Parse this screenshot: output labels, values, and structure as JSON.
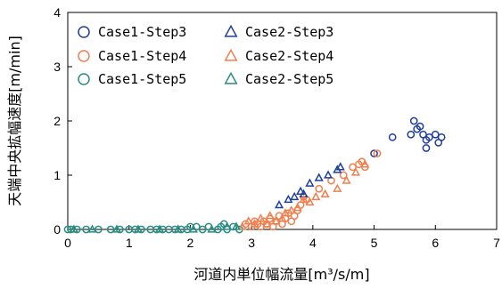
{
  "chart_data": {
    "type": "scatter",
    "xlabel": "河道内単位幅流量[m³/s/m]",
    "ylabel": "天端中央拡幅速度[m/min]",
    "xlim": [
      0,
      7
    ],
    "ylim": [
      0,
      4
    ],
    "xticks": [
      "0",
      "1",
      "2",
      "3",
      "4",
      "5",
      "6",
      "7"
    ],
    "yticks": [
      "0",
      "1",
      "2",
      "3",
      "4"
    ],
    "grid": false,
    "legend_position": "top-left",
    "series": [
      {
        "name": "Case1-Step3",
        "marker": "circle",
        "color": "#1f3f99",
        "points": [
          [
            5.0,
            1.4
          ],
          [
            5.3,
            1.7
          ],
          [
            5.6,
            1.75
          ],
          [
            5.65,
            2.0
          ],
          [
            5.7,
            1.85
          ],
          [
            5.75,
            1.9
          ],
          [
            5.8,
            1.75
          ],
          [
            5.85,
            1.65
          ],
          [
            5.85,
            1.5
          ],
          [
            5.9,
            1.7
          ],
          [
            6.0,
            1.75
          ],
          [
            6.05,
            1.6
          ],
          [
            6.1,
            1.7
          ]
        ]
      },
      {
        "name": "Case1-Step4",
        "marker": "circle",
        "color": "#f07f4e",
        "points": [
          [
            2.9,
            0.1
          ],
          [
            3.0,
            0.05
          ],
          [
            3.05,
            0.15
          ],
          [
            3.1,
            0.1
          ],
          [
            3.15,
            0.05
          ],
          [
            3.2,
            0.15
          ],
          [
            3.25,
            0.1
          ],
          [
            3.3,
            0.2
          ],
          [
            3.35,
            0.05
          ],
          [
            3.4,
            0.15
          ],
          [
            3.45,
            0.25
          ],
          [
            3.5,
            0.1
          ],
          [
            3.55,
            0.2
          ],
          [
            3.6,
            0.3
          ],
          [
            3.65,
            0.15
          ],
          [
            3.7,
            0.25
          ],
          [
            3.75,
            0.35
          ],
          [
            3.8,
            0.45
          ],
          [
            3.85,
            0.6
          ],
          [
            3.9,
            0.55
          ],
          [
            4.1,
            0.75
          ],
          [
            4.3,
            0.9
          ],
          [
            4.5,
            1.0
          ],
          [
            4.65,
            1.15
          ],
          [
            4.75,
            1.2
          ],
          [
            4.8,
            1.25
          ],
          [
            4.85,
            1.15
          ],
          [
            5.05,
            1.4
          ]
        ]
      },
      {
        "name": "Case1-Step5",
        "marker": "circle",
        "color": "#2a8c82",
        "points": [
          [
            0.0,
            0.0
          ],
          [
            0.05,
            0.0
          ],
          [
            0.15,
            0.0
          ],
          [
            0.3,
            0.0
          ],
          [
            0.5,
            0.0
          ],
          [
            0.7,
            0.0
          ],
          [
            0.85,
            0.0
          ],
          [
            1.0,
            0.0
          ],
          [
            1.1,
            0.0
          ],
          [
            1.2,
            0.0
          ],
          [
            1.35,
            0.0
          ],
          [
            1.45,
            0.0
          ],
          [
            1.55,
            0.0
          ],
          [
            1.65,
            0.0
          ],
          [
            1.75,
            0.0
          ],
          [
            1.85,
            0.0
          ],
          [
            1.95,
            0.0
          ],
          [
            2.0,
            0.05
          ],
          [
            2.1,
            0.05
          ],
          [
            2.2,
            0.0
          ],
          [
            2.3,
            0.05
          ],
          [
            2.45,
            0.0
          ],
          [
            2.5,
            0.05
          ],
          [
            2.55,
            0.1
          ],
          [
            2.6,
            0.0
          ],
          [
            2.7,
            0.05
          ],
          [
            2.8,
            0.0
          ]
        ]
      },
      {
        "name": "Case2-Step3",
        "marker": "triangle",
        "color": "#1f3f99",
        "points": [
          [
            3.45,
            0.45
          ],
          [
            3.6,
            0.55
          ],
          [
            3.7,
            0.6
          ],
          [
            3.8,
            0.7
          ],
          [
            3.85,
            0.65
          ],
          [
            3.95,
            0.85
          ],
          [
            4.1,
            0.95
          ],
          [
            4.25,
            1.0
          ],
          [
            4.4,
            1.1
          ],
          [
            4.45,
            1.15
          ]
        ]
      },
      {
        "name": "Case2-Step4",
        "marker": "triangle",
        "color": "#f07f4e",
        "points": [
          [
            2.85,
            0.05
          ],
          [
            2.95,
            0.15
          ],
          [
            3.05,
            0.1
          ],
          [
            3.15,
            0.2
          ],
          [
            3.25,
            0.1
          ],
          [
            3.3,
            0.25
          ],
          [
            3.4,
            0.15
          ],
          [
            3.5,
            0.2
          ],
          [
            3.55,
            0.3
          ],
          [
            3.65,
            0.35
          ],
          [
            3.75,
            0.4
          ],
          [
            3.85,
            0.55
          ],
          [
            3.95,
            0.5
          ],
          [
            4.05,
            0.6
          ],
          [
            4.2,
            0.65
          ],
          [
            4.4,
            0.75
          ],
          [
            4.55,
            0.9
          ],
          [
            4.7,
            1.05
          ],
          [
            4.85,
            1.2
          ]
        ]
      },
      {
        "name": "Case2-Step5",
        "marker": "triangle",
        "color": "#2a8c82",
        "points": [
          [
            0.1,
            0.0
          ],
          [
            0.4,
            0.0
          ],
          [
            0.8,
            0.0
          ],
          [
            1.15,
            0.0
          ],
          [
            1.5,
            0.0
          ],
          [
            1.8,
            0.0
          ],
          [
            2.05,
            0.0
          ],
          [
            2.35,
            0.0
          ],
          [
            2.6,
            0.05
          ],
          [
            2.75,
            0.05
          ]
        ]
      }
    ]
  }
}
